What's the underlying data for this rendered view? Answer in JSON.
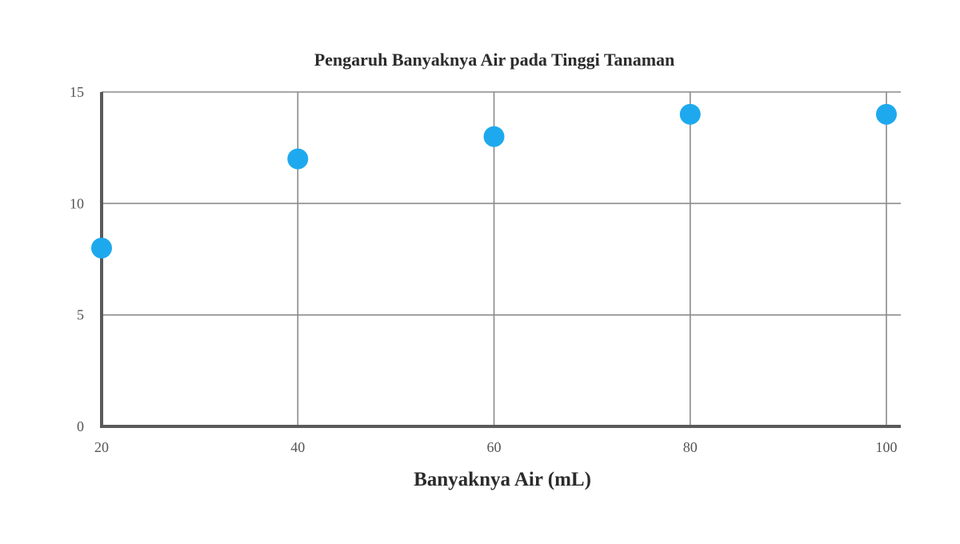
{
  "chart_data": {
    "type": "scatter",
    "title": "Pengaruh Banyaknya Air pada Tinggi Tanaman",
    "xlabel": "Banyaknya Air (mL)",
    "ylabel": "",
    "x": [
      20,
      40,
      60,
      80,
      100
    ],
    "y": [
      8,
      12,
      13,
      14,
      14
    ],
    "xlim": [
      20,
      100
    ],
    "ylim": [
      0,
      15
    ],
    "x_ticks": [
      20,
      40,
      60,
      80,
      100
    ],
    "y_ticks": [
      0,
      5,
      10,
      15
    ],
    "grid": true,
    "legend": "none",
    "point_color": "#1ea9ee"
  }
}
